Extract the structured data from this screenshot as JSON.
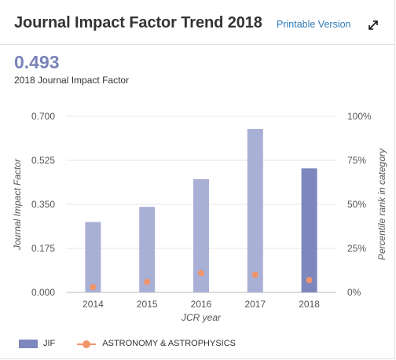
{
  "header": {
    "title": "Journal Impact Factor Trend 2018",
    "printable_label": "Printable Version",
    "expand_icon": "expand-icon"
  },
  "metric": {
    "value": "0.493",
    "label": "2018 Journal Impact Factor"
  },
  "colors": {
    "bar": "#a9b0d6",
    "bar_current": "#7d86bd",
    "percentile": "#f0956a",
    "grid": "#e6e6e6",
    "accent_link": "#2f7ab9",
    "metric_value": "#7a84b8"
  },
  "chart_data": {
    "type": "bar",
    "categories": [
      "2014",
      "2015",
      "2016",
      "2017",
      "2018"
    ],
    "series": [
      {
        "name": "JIF",
        "kind": "bar",
        "axis": "left",
        "values": [
          0.28,
          0.34,
          0.45,
          0.65,
          0.493
        ]
      },
      {
        "name": "ASTRONOMY & ASTROPHYSICS",
        "kind": "points",
        "axis": "right",
        "values": [
          3,
          6,
          11,
          10,
          7
        ]
      }
    ],
    "xlabel": "JCR year",
    "ylabel": "Journal Impact Factor",
    "y2label": "Percentile rank in category",
    "ylim": [
      0,
      0.7
    ],
    "y2lim": [
      0,
      100
    ],
    "yticks": [
      "0.000",
      "0.175",
      "0.350",
      "0.525",
      "0.700"
    ],
    "y2ticks": [
      "0%",
      "25%",
      "50%",
      "75%",
      "100%"
    ],
    "grid": true,
    "legend_position": "bottom-left"
  }
}
